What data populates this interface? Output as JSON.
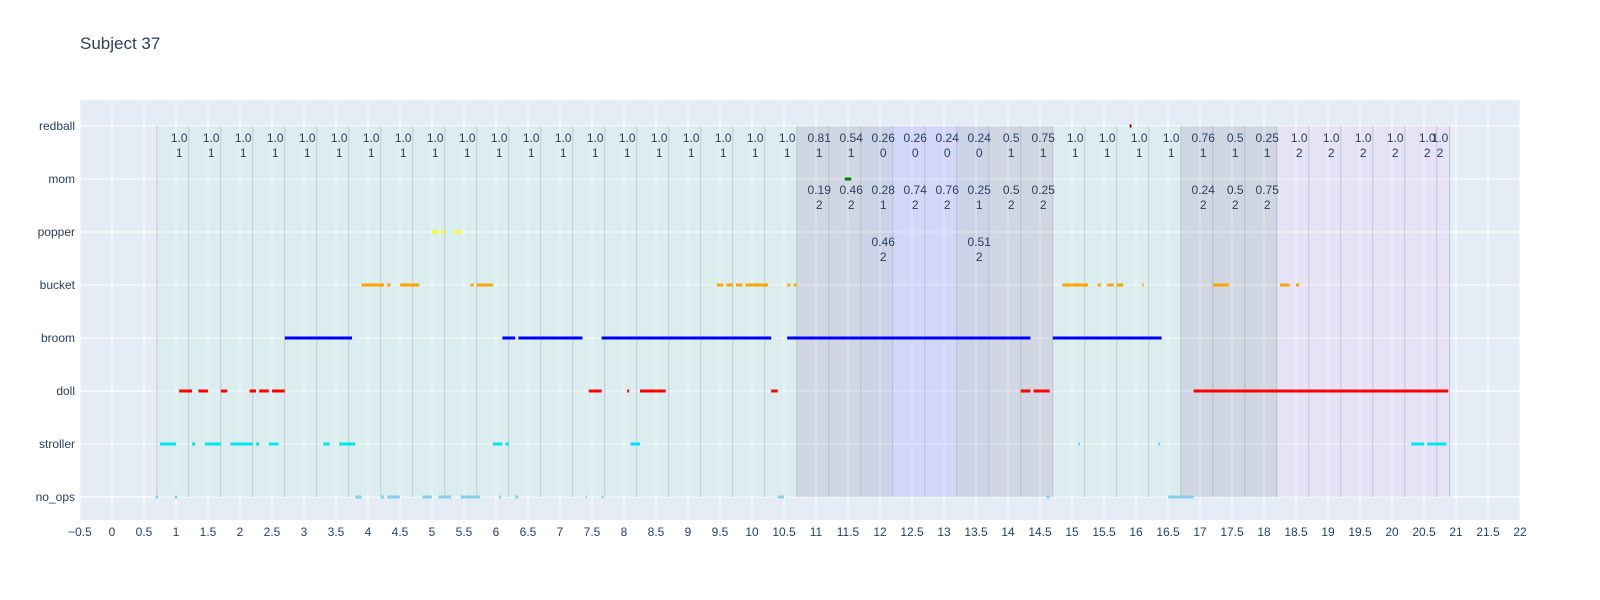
{
  "chart_data": {
    "type": "timeline",
    "title": "Subject 37",
    "xlim": [
      -0.5,
      22
    ],
    "xticks": [
      "−0.5",
      "0",
      "0.5",
      "1",
      "1.5",
      "2",
      "2.5",
      "3",
      "3.5",
      "4",
      "4.5",
      "5",
      "5.5",
      "6",
      "6.5",
      "7",
      "7.5",
      "8",
      "8.5",
      "9",
      "9.5",
      "10",
      "10.5",
      "11",
      "11.5",
      "12",
      "12.5",
      "13",
      "13.5",
      "14",
      "14.5",
      "15",
      "15.5",
      "16",
      "16.5",
      "17",
      "17.5",
      "18",
      "18.5",
      "19",
      "19.5",
      "20",
      "20.5",
      "21",
      "21.5",
      "22"
    ],
    "xtick_values": [
      -0.5,
      0,
      0.5,
      1,
      1.5,
      2,
      2.5,
      3,
      3.5,
      4,
      4.5,
      5,
      5.5,
      6,
      6.5,
      7,
      7.5,
      8,
      8.5,
      9,
      9.5,
      10,
      10.5,
      11,
      11.5,
      12,
      12.5,
      13,
      13.5,
      14,
      14.5,
      15,
      15.5,
      16,
      16.5,
      17,
      17.5,
      18,
      18.5,
      19,
      19.5,
      20,
      20.5,
      21,
      21.5,
      22
    ],
    "categories": [
      "no_ops",
      "stroller",
      "doll",
      "broom",
      "bucket",
      "popper",
      "mom",
      "redball"
    ],
    "colors": {
      "no_ops": "#87ceeb",
      "stroller": "#00e5ee",
      "doll": "#ff0000",
      "broom": "#0000ff",
      "bucket": "#ffa500",
      "popper": "#ffff00",
      "mom": "#008000",
      "redball": "#8b0000"
    },
    "series": [
      {
        "name": "no_ops",
        "segments": [
          [
            0.68,
            0.72
          ],
          [
            0.98,
            1.02
          ],
          [
            3.8,
            3.9
          ],
          [
            4.2,
            4.25
          ],
          [
            4.3,
            4.5
          ],
          [
            4.85,
            5.0
          ],
          [
            5.1,
            5.3
          ],
          [
            5.45,
            5.75
          ],
          [
            6.05,
            6.08
          ],
          [
            6.3,
            6.35
          ],
          [
            7.4,
            7.42
          ],
          [
            7.65,
            7.68
          ],
          [
            10.4,
            10.5
          ],
          [
            14.6,
            14.65
          ],
          [
            16.5,
            16.9
          ]
        ]
      },
      {
        "name": "stroller",
        "segments": [
          [
            0.75,
            1.0
          ],
          [
            1.25,
            1.3
          ],
          [
            1.45,
            1.7
          ],
          [
            1.85,
            2.2
          ],
          [
            2.25,
            2.3
          ],
          [
            2.45,
            2.6
          ],
          [
            3.3,
            3.4
          ],
          [
            3.55,
            3.8
          ],
          [
            5.95,
            6.1
          ],
          [
            6.15,
            6.2
          ],
          [
            8.1,
            8.25
          ],
          [
            15.1,
            15.12
          ],
          [
            16.35,
            16.37
          ],
          [
            20.3,
            20.5
          ],
          [
            20.55,
            20.85
          ]
        ]
      },
      {
        "name": "doll",
        "segments": [
          [
            1.05,
            1.25
          ],
          [
            1.35,
            1.5
          ],
          [
            1.7,
            1.8
          ],
          [
            2.15,
            2.25
          ],
          [
            2.3,
            2.45
          ],
          [
            2.5,
            2.7
          ],
          [
            7.45,
            7.65
          ],
          [
            8.05,
            8.08
          ],
          [
            8.25,
            8.65
          ],
          [
            10.3,
            10.4
          ],
          [
            14.2,
            14.35
          ],
          [
            14.4,
            14.65
          ],
          [
            16.9,
            20.88
          ]
        ]
      },
      {
        "name": "broom",
        "segments": [
          [
            2.7,
            3.75
          ],
          [
            6.1,
            6.3
          ],
          [
            6.35,
            7.35
          ],
          [
            7.65,
            10.3
          ],
          [
            10.55,
            14.35
          ],
          [
            14.7,
            16.4
          ]
        ]
      },
      {
        "name": "bucket",
        "segments": [
          [
            3.9,
            4.25
          ],
          [
            4.3,
            4.35
          ],
          [
            4.5,
            4.8
          ],
          [
            5.6,
            5.65
          ],
          [
            5.7,
            5.95
          ],
          [
            9.45,
            9.55
          ],
          [
            9.6,
            9.7
          ],
          [
            9.75,
            9.85
          ],
          [
            9.9,
            10.25
          ],
          [
            10.55,
            10.6
          ],
          [
            10.65,
            10.7
          ],
          [
            14.85,
            15.25
          ],
          [
            15.4,
            15.45
          ],
          [
            15.55,
            15.65
          ],
          [
            15.7,
            15.8
          ],
          [
            16.1,
            16.12
          ],
          [
            17.2,
            17.45
          ],
          [
            18.25,
            18.4
          ],
          [
            18.5,
            18.55
          ]
        ]
      },
      {
        "name": "popper",
        "segments": [
          [
            5.0,
            5.1
          ],
          [
            5.15,
            5.2
          ],
          [
            5.35,
            5.45
          ]
        ]
      },
      {
        "name": "mom",
        "segments": [
          [
            11.45,
            11.55
          ]
        ]
      },
      {
        "name": "redball",
        "segments": [
          [
            15.9,
            15.93
          ]
        ]
      }
    ],
    "shaded_bands": [
      {
        "x0": 0.7,
        "x1": 10.7,
        "color": "#c8f0e0",
        "opacity": 0.3
      },
      {
        "x0": 10.7,
        "x1": 11.7,
        "color": "#888899",
        "opacity": 0.22
      },
      {
        "x0": 11.7,
        "x1": 12.2,
        "color": "#7080b0",
        "opacity": 0.22
      },
      {
        "x0": 12.2,
        "x1": 13.2,
        "color": "#b8b8ff",
        "opacity": 0.4
      },
      {
        "x0": 13.2,
        "x1": 13.7,
        "color": "#7080b0",
        "opacity": 0.22
      },
      {
        "x0": 13.7,
        "x1": 14.7,
        "color": "#888899",
        "opacity": 0.22
      },
      {
        "x0": 14.7,
        "x1": 16.7,
        "color": "#c8f0e0",
        "opacity": 0.3
      },
      {
        "x0": 16.7,
        "x1": 18.2,
        "color": "#888899",
        "opacity": 0.22
      },
      {
        "x0": 18.2,
        "x1": 20.9,
        "color": "#e4d4f4",
        "opacity": 0.35
      }
    ],
    "band_edges": [
      0.7,
      1.2,
      1.7,
      2.2,
      2.7,
      3.2,
      3.7,
      4.2,
      4.7,
      5.2,
      5.7,
      6.2,
      6.7,
      7.2,
      7.7,
      8.2,
      8.7,
      9.2,
      9.7,
      10.2,
      10.7,
      11.2,
      11.7,
      12.2,
      12.7,
      13.2,
      13.7,
      14.2,
      14.7,
      15.2,
      15.7,
      16.2,
      16.7,
      17.2,
      17.7,
      18.2,
      18.7,
      19.2,
      19.7,
      20.2,
      20.7,
      20.9
    ],
    "annotations": [
      {
        "x": 1.05,
        "row": 1,
        "text": [
          "1.0",
          "1"
        ]
      },
      {
        "x": 1.55,
        "row": 1,
        "text": [
          "1.0",
          "1"
        ]
      },
      {
        "x": 2.05,
        "row": 1,
        "text": [
          "1.0",
          "1"
        ]
      },
      {
        "x": 2.55,
        "row": 1,
        "text": [
          "1.0",
          "1"
        ]
      },
      {
        "x": 3.05,
        "row": 1,
        "text": [
          "1.0",
          "1"
        ]
      },
      {
        "x": 3.55,
        "row": 1,
        "text": [
          "1.0",
          "1"
        ]
      },
      {
        "x": 4.05,
        "row": 1,
        "text": [
          "1.0",
          "1"
        ]
      },
      {
        "x": 4.55,
        "row": 1,
        "text": [
          "1.0",
          "1"
        ]
      },
      {
        "x": 5.05,
        "row": 1,
        "text": [
          "1.0",
          "1"
        ]
      },
      {
        "x": 5.55,
        "row": 1,
        "text": [
          "1.0",
          "1"
        ]
      },
      {
        "x": 6.05,
        "row": 1,
        "text": [
          "1.0",
          "1"
        ]
      },
      {
        "x": 6.55,
        "row": 1,
        "text": [
          "1.0",
          "1"
        ]
      },
      {
        "x": 7.05,
        "row": 1,
        "text": [
          "1.0",
          "1"
        ]
      },
      {
        "x": 7.55,
        "row": 1,
        "text": [
          "1.0",
          "1"
        ]
      },
      {
        "x": 8.05,
        "row": 1,
        "text": [
          "1.0",
          "1"
        ]
      },
      {
        "x": 8.55,
        "row": 1,
        "text": [
          "1.0",
          "1"
        ]
      },
      {
        "x": 9.05,
        "row": 1,
        "text": [
          "1.0",
          "1"
        ]
      },
      {
        "x": 9.55,
        "row": 1,
        "text": [
          "1.0",
          "1"
        ]
      },
      {
        "x": 10.05,
        "row": 1,
        "text": [
          "1.0",
          "1"
        ]
      },
      {
        "x": 10.55,
        "row": 1,
        "text": [
          "1.0",
          "1"
        ]
      },
      {
        "x": 11.05,
        "row": 1,
        "text": [
          "0.81",
          "1"
        ]
      },
      {
        "x": 11.55,
        "row": 1,
        "text": [
          "0.54",
          "1"
        ]
      },
      {
        "x": 12.05,
        "row": 1,
        "text": [
          "0.26",
          "0"
        ]
      },
      {
        "x": 12.55,
        "row": 1,
        "text": [
          "0.26",
          "0"
        ]
      },
      {
        "x": 13.05,
        "row": 1,
        "text": [
          "0.24",
          "0"
        ]
      },
      {
        "x": 13.55,
        "row": 1,
        "text": [
          "0.24",
          "0"
        ]
      },
      {
        "x": 14.05,
        "row": 1,
        "text": [
          "0.5",
          "1"
        ]
      },
      {
        "x": 14.55,
        "row": 1,
        "text": [
          "0.75",
          "1"
        ]
      },
      {
        "x": 15.05,
        "row": 1,
        "text": [
          "1.0",
          "1"
        ]
      },
      {
        "x": 15.55,
        "row": 1,
        "text": [
          "1.0",
          "1"
        ]
      },
      {
        "x": 16.05,
        "row": 1,
        "text": [
          "1.0",
          "1"
        ]
      },
      {
        "x": 16.55,
        "row": 1,
        "text": [
          "1.0",
          "1"
        ]
      },
      {
        "x": 17.05,
        "row": 1,
        "text": [
          "0.76",
          "1"
        ]
      },
      {
        "x": 17.55,
        "row": 1,
        "text": [
          "0.5",
          "1"
        ]
      },
      {
        "x": 18.05,
        "row": 1,
        "text": [
          "0.25",
          "1"
        ]
      },
      {
        "x": 18.55,
        "row": 1,
        "text": [
          "1.0",
          "2"
        ]
      },
      {
        "x": 19.05,
        "row": 1,
        "text": [
          "1.0",
          "2"
        ]
      },
      {
        "x": 19.55,
        "row": 1,
        "text": [
          "1.0",
          "2"
        ]
      },
      {
        "x": 20.05,
        "row": 1,
        "text": [
          "1.0",
          "2"
        ]
      },
      {
        "x": 20.55,
        "row": 1,
        "text": [
          "1.0",
          "2"
        ]
      },
      {
        "x": 20.75,
        "row": 1,
        "text": [
          "1.0",
          "2"
        ]
      },
      {
        "x": 11.05,
        "row": 2,
        "text": [
          "0.19",
          "2"
        ]
      },
      {
        "x": 11.55,
        "row": 2,
        "text": [
          "0.46",
          "2"
        ]
      },
      {
        "x": 12.05,
        "row": 2,
        "text": [
          "0.28",
          "1"
        ]
      },
      {
        "x": 12.55,
        "row": 2,
        "text": [
          "0.74",
          "2"
        ]
      },
      {
        "x": 13.05,
        "row": 2,
        "text": [
          "0.76",
          "2"
        ]
      },
      {
        "x": 13.55,
        "row": 2,
        "text": [
          "0.25",
          "1"
        ]
      },
      {
        "x": 14.05,
        "row": 2,
        "text": [
          "0.5",
          "2"
        ]
      },
      {
        "x": 14.55,
        "row": 2,
        "text": [
          "0.25",
          "2"
        ]
      },
      {
        "x": 17.05,
        "row": 2,
        "text": [
          "0.24",
          "2"
        ]
      },
      {
        "x": 17.55,
        "row": 2,
        "text": [
          "0.5",
          "2"
        ]
      },
      {
        "x": 18.05,
        "row": 2,
        "text": [
          "0.75",
          "2"
        ]
      },
      {
        "x": 12.05,
        "row": 3,
        "text": [
          "0.46",
          "2"
        ]
      },
      {
        "x": 13.55,
        "row": 3,
        "text": [
          "0.51",
          "2"
        ]
      }
    ]
  }
}
